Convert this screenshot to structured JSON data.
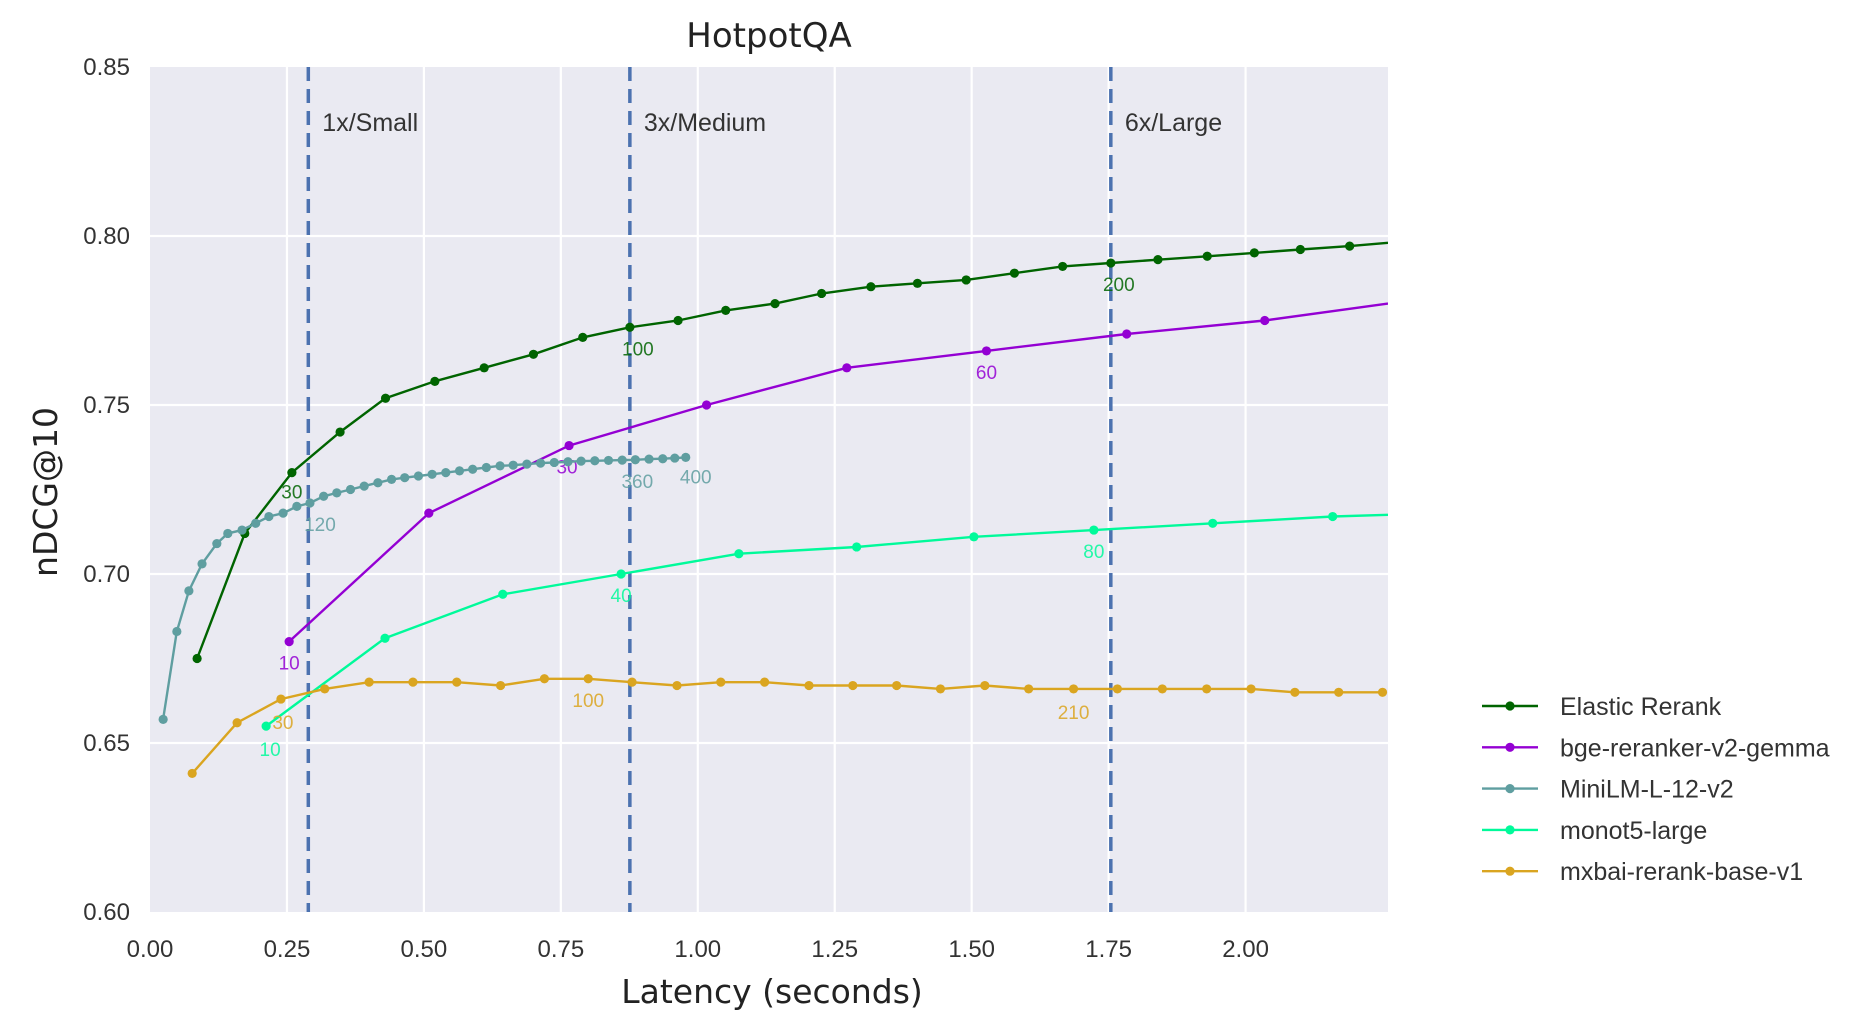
{
  "chart_data": {
    "type": "line",
    "title": "HotpotQA",
    "xlabel": "Latency (seconds)",
    "ylabel": "nDCG@10",
    "xlim": [
      0.0,
      2.26
    ],
    "ylim": [
      0.6,
      0.85
    ],
    "xticks": [
      "0.00",
      "0.25",
      "0.50",
      "0.75",
      "1.00",
      "1.25",
      "1.50",
      "1.75",
      "2.00"
    ],
    "xtick_values": [
      0.0,
      0.25,
      0.5,
      0.75,
      1.0,
      1.25,
      1.5,
      1.75,
      2.0
    ],
    "yticks": [
      "0.60",
      "0.65",
      "0.70",
      "0.75",
      "0.80",
      "0.85"
    ],
    "ytick_values": [
      0.6,
      0.65,
      0.7,
      0.75,
      0.8,
      0.85
    ],
    "grid": true,
    "background": "#eaeaf2",
    "legend_position": "right, lower",
    "vlines": [
      {
        "x": 0.289,
        "label": "1x/Small",
        "color": "#4c72b0"
      },
      {
        "x": 0.876,
        "label": "3x/Medium",
        "color": "#4c72b0"
      },
      {
        "x": 1.754,
        "label": "6x/Large",
        "color": "#4c72b0"
      }
    ],
    "series": [
      {
        "name": "Elastic Rerank",
        "color": "#006400",
        "x": [
          0.086,
          0.173,
          0.259,
          0.347,
          0.43,
          0.52,
          0.61,
          0.7,
          0.79,
          0.876,
          0.964,
          1.051,
          1.141,
          1.226,
          1.316,
          1.401,
          1.49,
          1.578,
          1.666,
          1.754,
          1.84,
          1.93,
          2.016,
          2.1,
          2.19,
          2.26
        ],
        "y": [
          0.675,
          0.712,
          0.73,
          0.742,
          0.752,
          0.757,
          0.761,
          0.765,
          0.77,
          0.773,
          0.775,
          0.778,
          0.78,
          0.783,
          0.785,
          0.786,
          0.787,
          0.789,
          0.791,
          0.792,
          0.793,
          0.794,
          0.795,
          0.796,
          0.797,
          0.798
        ],
        "markers_last_excluded": true,
        "annotations": [
          {
            "text": "30",
            "x": 0.259,
            "y": 0.73,
            "dx": 0,
            "dy": 26
          },
          {
            "text": "100",
            "x": 0.876,
            "y": 0.773,
            "dx": 8,
            "dy": 28
          },
          {
            "text": "200",
            "x": 1.754,
            "y": 0.792,
            "dx": 8,
            "dy": 28
          }
        ]
      },
      {
        "name": "bge-reranker-v2-gemma",
        "color": "#9400d3",
        "x": [
          0.254,
          0.509,
          0.765,
          1.016,
          1.272,
          1.527,
          1.783,
          2.035,
          2.26
        ],
        "y": [
          0.68,
          0.718,
          0.738,
          0.75,
          0.761,
          0.766,
          0.771,
          0.775,
          0.78
        ],
        "markers_last_excluded": true,
        "annotations": [
          {
            "text": "10",
            "x": 0.254,
            "y": 0.68,
            "dx": 0,
            "dy": 28
          },
          {
            "text": "30",
            "x": 0.765,
            "y": 0.738,
            "dx": -2,
            "dy": 28
          },
          {
            "text": "60",
            "x": 1.527,
            "y": 0.766,
            "dx": 0,
            "dy": 28
          }
        ]
      },
      {
        "name": "MiniLM-L-12-v2",
        "color": "#5f9ea0",
        "x": [
          0.024,
          0.049,
          0.071,
          0.095,
          0.122,
          0.142,
          0.168,
          0.193,
          0.217,
          0.243,
          0.268,
          0.292,
          0.317,
          0.341,
          0.366,
          0.391,
          0.416,
          0.441,
          0.465,
          0.49,
          0.515,
          0.54,
          0.565,
          0.589,
          0.614,
          0.639,
          0.663,
          0.688,
          0.713,
          0.738,
          0.763,
          0.787,
          0.812,
          0.837,
          0.862,
          0.886,
          0.911,
          0.936,
          0.958,
          0.978
        ],
        "y": [
          0.657,
          0.683,
          0.695,
          0.703,
          0.709,
          0.712,
          0.713,
          0.715,
          0.717,
          0.718,
          0.72,
          0.721,
          0.723,
          0.724,
          0.725,
          0.726,
          0.727,
          0.728,
          0.7285,
          0.729,
          0.7295,
          0.73,
          0.7305,
          0.731,
          0.7315,
          0.732,
          0.7322,
          0.7325,
          0.7328,
          0.733,
          0.7332,
          0.7334,
          0.7335,
          0.7336,
          0.7337,
          0.7338,
          0.734,
          0.7341,
          0.7343,
          0.7345
        ],
        "annotations": [
          {
            "text": "120",
            "x": 0.292,
            "y": 0.721,
            "dx": 10,
            "dy": 28
          },
          {
            "text": "360",
            "x": 0.886,
            "y": 0.7338,
            "dx": 2,
            "dy": 28
          },
          {
            "text": "400",
            "x": 0.978,
            "y": 0.7345,
            "dx": 10,
            "dy": 26
          }
        ]
      },
      {
        "name": "monot5-large",
        "color": "#00fa9a",
        "x": [
          0.212,
          0.429,
          0.644,
          0.86,
          1.075,
          1.29,
          1.504,
          1.723,
          1.94,
          2.159,
          2.26
        ],
        "y": [
          0.655,
          0.681,
          0.694,
          0.7,
          0.706,
          0.708,
          0.711,
          0.713,
          0.715,
          0.717,
          0.7175
        ],
        "markers_last_excluded": true,
        "annotations": [
          {
            "text": "10",
            "x": 0.212,
            "y": 0.655,
            "dx": 4,
            "dy": 30
          },
          {
            "text": "40",
            "x": 0.86,
            "y": 0.7,
            "dx": 0,
            "dy": 28
          },
          {
            "text": "80",
            "x": 1.723,
            "y": 0.713,
            "dx": 0,
            "dy": 28
          }
        ]
      },
      {
        "name": "mxbai-rerank-base-v1",
        "color": "#daa520",
        "x": [
          0.077,
          0.159,
          0.239,
          0.319,
          0.4,
          0.48,
          0.56,
          0.64,
          0.72,
          0.8,
          0.88,
          0.962,
          1.042,
          1.122,
          1.203,
          1.283,
          1.363,
          1.443,
          1.524,
          1.604,
          1.686,
          1.766,
          1.848,
          1.929,
          2.01,
          2.09,
          2.17,
          2.25
        ],
        "y": [
          0.641,
          0.656,
          0.663,
          0.666,
          0.668,
          0.668,
          0.668,
          0.667,
          0.669,
          0.669,
          0.668,
          0.667,
          0.668,
          0.668,
          0.667,
          0.667,
          0.667,
          0.666,
          0.667,
          0.666,
          0.666,
          0.666,
          0.666,
          0.666,
          0.666,
          0.665,
          0.665,
          0.665
        ],
        "annotations": [
          {
            "text": "30",
            "x": 0.239,
            "y": 0.663,
            "dx": 2,
            "dy": 30
          },
          {
            "text": "100",
            "x": 0.8,
            "y": 0.669,
            "dx": 0,
            "dy": 28
          },
          {
            "text": "210",
            "x": 1.686,
            "y": 0.666,
            "dx": 0,
            "dy": 30
          }
        ]
      }
    ]
  }
}
